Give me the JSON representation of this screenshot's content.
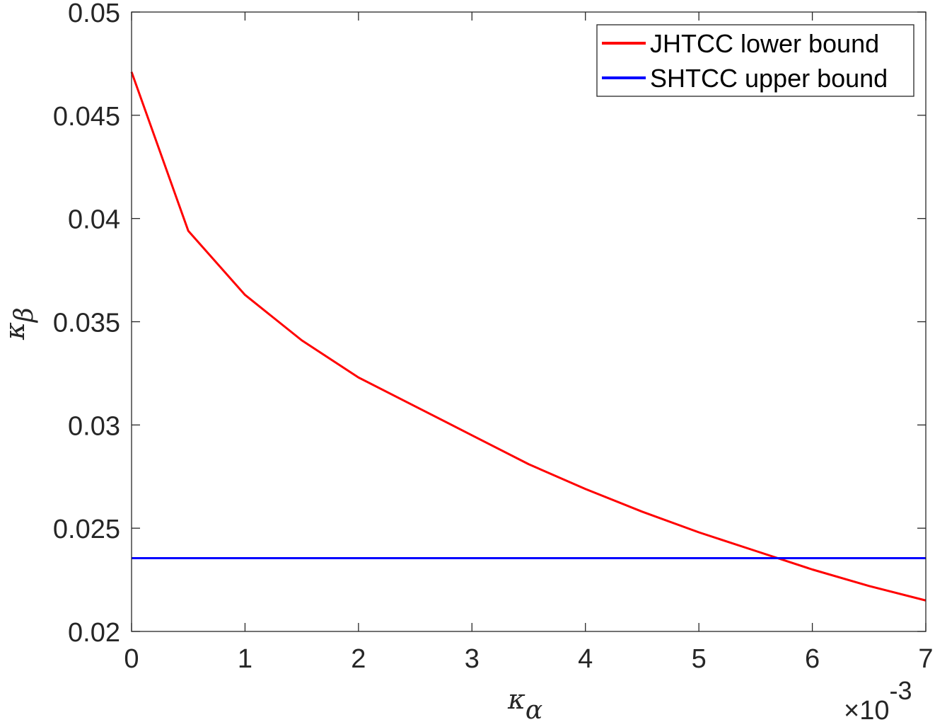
{
  "chart_data": {
    "type": "line",
    "xlabel": {
      "base": "κ",
      "sub": "α"
    },
    "ylabel": {
      "base": "κ",
      "sub": "β"
    },
    "x_exponent": {
      "prefix": "×10",
      "power": "-3"
    },
    "xlim": [
      0,
      7
    ],
    "ylim": [
      0.02,
      0.05
    ],
    "x_ticks": [
      0,
      1,
      2,
      3,
      4,
      5,
      6,
      7
    ],
    "x_tick_labels": [
      "0",
      "1",
      "2",
      "3",
      "4",
      "5",
      "6",
      "7"
    ],
    "y_ticks": [
      0.02,
      0.025,
      0.03,
      0.035,
      0.04,
      0.045,
      0.05
    ],
    "y_tick_labels": [
      "0.02",
      "0.025",
      "0.03",
      "0.035",
      "0.04",
      "0.045",
      "0.05"
    ],
    "grid": false,
    "legend_position": "top-right",
    "series": [
      {
        "name": "JHTCC lower bound",
        "color": "#ff0000",
        "x": [
          0,
          0.5,
          1,
          1.5,
          2,
          2.5,
          3,
          3.5,
          4,
          4.5,
          5,
          5.5,
          6,
          6.5,
          7
        ],
        "y": [
          0.0471,
          0.0394,
          0.0363,
          0.0341,
          0.0323,
          0.0309,
          0.0295,
          0.0281,
          0.0269,
          0.0258,
          0.0248,
          0.0239,
          0.023,
          0.0222,
          0.0215
        ]
      },
      {
        "name": "SHTCC upper bound",
        "color": "#0000ff",
        "x": [
          0,
          7
        ],
        "y": [
          0.02355,
          0.02355
        ]
      }
    ]
  }
}
